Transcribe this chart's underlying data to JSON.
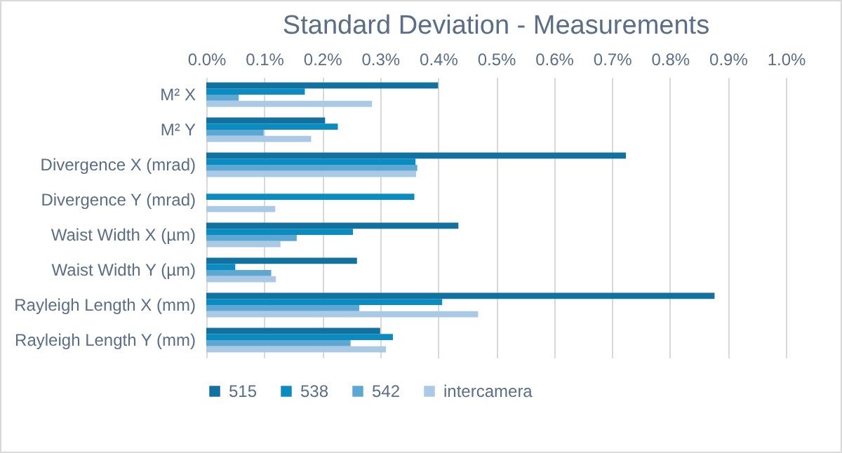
{
  "chart_data": {
    "type": "bar",
    "orientation": "horizontal",
    "title": "Standard Deviation - Measurements",
    "categories": [
      "M² X",
      "M² Y",
      "Divergence X (mrad)",
      "Divergence Y (mrad)",
      "Waist Width X (µm)",
      "Waist Width Y (µm)",
      "Rayleigh Length X (mm)",
      "Rayleigh Length Y (mm)"
    ],
    "series": [
      {
        "name": "515",
        "color": "#13719f",
        "values": [
          0.4,
          0.205,
          0.724,
          null,
          0.435,
          0.26,
          0.877,
          0.3
        ]
      },
      {
        "name": "538",
        "color": "#0b8cc0",
        "values": [
          0.17,
          0.227,
          0.361,
          0.359,
          0.253,
          0.05,
          0.407,
          0.322
        ]
      },
      {
        "name": "542",
        "color": "#5ea7d3",
        "values": [
          0.056,
          0.099,
          0.364,
          null,
          0.156,
          0.112,
          0.264,
          0.249
        ]
      },
      {
        "name": "intercamera",
        "color": "#a9c9e5",
        "values": [
          0.286,
          0.181,
          0.362,
          0.119,
          0.128,
          0.12,
          0.469,
          0.31
        ]
      }
    ],
    "xlim": [
      0,
      1.0
    ],
    "xticks": [
      {
        "value": 0,
        "label": "0.0%"
      },
      {
        "value": 0.1,
        "label": "0.1%"
      },
      {
        "value": 0.2,
        "label": "0.2%"
      },
      {
        "value": 0.3,
        "label": "0.3%"
      },
      {
        "value": 0.4,
        "label": "0.4%"
      },
      {
        "value": 0.5,
        "label": "0.5%"
      },
      {
        "value": 0.6,
        "label": "0.6%"
      },
      {
        "value": 0.7,
        "label": "0.7%"
      },
      {
        "value": 0.8,
        "label": "0.8%"
      },
      {
        "value": 0.9,
        "label": "0.9%"
      },
      {
        "value": 1.0,
        "label": "1.0%"
      }
    ],
    "grid": true,
    "legend": "bottom"
  }
}
